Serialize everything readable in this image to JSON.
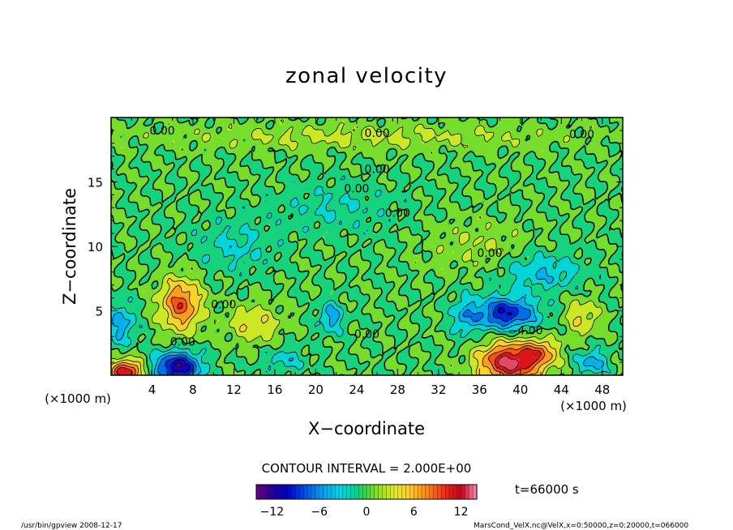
{
  "chart_data": {
    "type": "heatmap",
    "title": "zonal velocity",
    "xlabel": "X−coordinate",
    "ylabel": "Z−coordinate",
    "x_unit": "(×1000 m)",
    "y_unit": "(×1000 m)",
    "xlim": [
      0,
      50
    ],
    "ylim": [
      0,
      20
    ],
    "x_ticks": [
      "4",
      "8",
      "12",
      "16",
      "20",
      "24",
      "28",
      "32",
      "36",
      "40",
      "44",
      "48"
    ],
    "y_ticks": [
      "5",
      "10",
      "15"
    ],
    "contour_interval_text": "CONTOUR INTERVAL = 2.000E+00",
    "contour_labels": [
      "0.00",
      "0.00",
      "0.00",
      "0.00",
      "0.00",
      "0.00",
      "0.00",
      "0.00",
      "0.00",
      "0.00",
      "−4.00"
    ],
    "time_label": "t=66000 s",
    "colorbar": {
      "min": -14,
      "max": 14,
      "tick_labels": [
        "−12",
        "−6",
        "0",
        "6",
        "12"
      ]
    },
    "features": [
      {
        "x": 1.5,
        "z": 0.3,
        "u": 12.0,
        "sx": 1.6,
        "sz": 0.9
      },
      {
        "x": 6.5,
        "z": 0.6,
        "u": -12.0,
        "sx": 2.2,
        "sz": 1.2
      },
      {
        "x": 39.0,
        "z": 1.0,
        "u": 13.0,
        "sx": 3.0,
        "sz": 1.5
      },
      {
        "x": 42.0,
        "z": 1.8,
        "u": 6.0,
        "sx": 1.6,
        "sz": 1.0
      },
      {
        "x": 38.5,
        "z": 4.8,
        "u": -10.0,
        "sx": 3.0,
        "sz": 1.2
      },
      {
        "x": 6.8,
        "z": 5.5,
        "u": 9.0,
        "sx": 2.0,
        "sz": 2.0
      },
      {
        "x": 14.0,
        "z": 4.0,
        "u": 4.0,
        "sx": 2.5,
        "sz": 1.5
      },
      {
        "x": 1.0,
        "z": 4.0,
        "u": -5.0,
        "sx": 1.4,
        "sz": 1.6
      },
      {
        "x": 21.5,
        "z": 4.5,
        "u": -5.0,
        "sx": 1.2,
        "sz": 1.2
      },
      {
        "x": 34.5,
        "z": 4.5,
        "u": -4.0,
        "sx": 1.2,
        "sz": 1.5
      },
      {
        "x": 46.0,
        "z": 4.5,
        "u": 4.0,
        "sx": 1.6,
        "sz": 1.5
      },
      {
        "x": 42.0,
        "z": 8.0,
        "u": -4.0,
        "sx": 4.0,
        "sz": 1.5
      },
      {
        "x": 12.0,
        "z": 10.0,
        "u": -2.5,
        "sx": 4.0,
        "sz": 2.0
      },
      {
        "x": 22.0,
        "z": 13.0,
        "u": -2.0,
        "sx": 6.0,
        "sz": 2.0
      },
      {
        "x": 36.0,
        "z": 10.0,
        "u": 2.0,
        "sx": 5.0,
        "sz": 2.0
      },
      {
        "x": 25.0,
        "z": 18.5,
        "u": 2.5,
        "sx": 20.0,
        "sz": 1.0
      },
      {
        "x": 47.0,
        "z": 1.0,
        "u": -5.0,
        "sx": 1.5,
        "sz": 1.0
      },
      {
        "x": 17.0,
        "z": 1.2,
        "u": -3.0,
        "sx": 2.0,
        "sz": 1.0
      }
    ]
  },
  "footer": {
    "left": "/usr/bin/gpview   2008-12-17",
    "right": "MarsCond_VelX.nc@VelX,x=0:50000,z=0:20000,t=066000"
  }
}
